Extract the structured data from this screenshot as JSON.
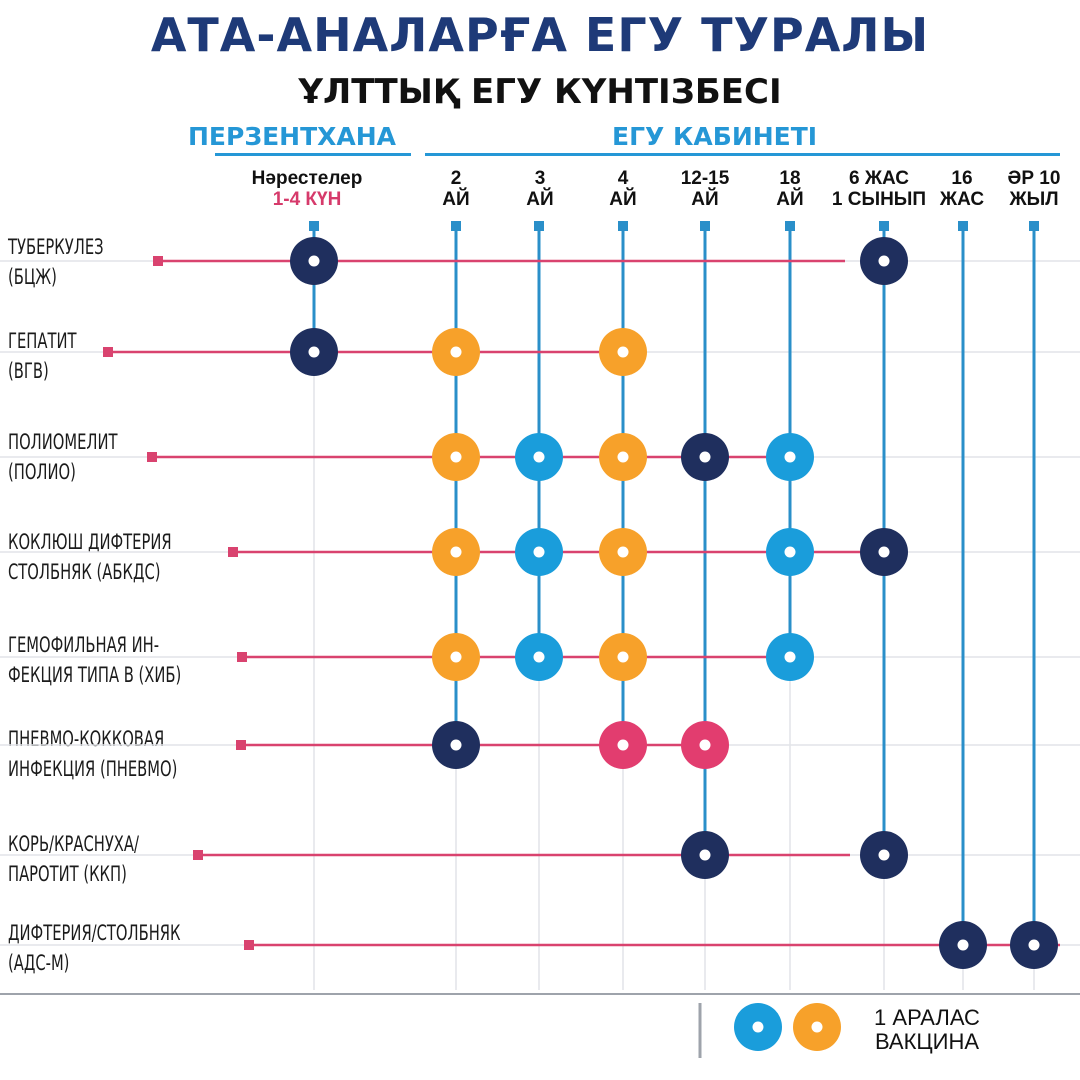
{
  "header": {
    "title": "АТА-АНАЛАРҒА ЕГУ ТУРАЛЫ",
    "subtitle": "ҰЛТТЫҚ ЕГУ КҮНТІЗБЕСІ"
  },
  "sections": {
    "left": "ПЕРЗЕНТХАНА",
    "right": "ЕГУ КАБИНЕТІ"
  },
  "columns": [
    {
      "id": "newborn",
      "line1": "Нәрестелер",
      "line2": "1-4 КҮН"
    },
    {
      "id": "m2",
      "line1": "2",
      "line2": "АЙ"
    },
    {
      "id": "m3",
      "line1": "3",
      "line2": "АЙ"
    },
    {
      "id": "m4",
      "line1": "4",
      "line2": "АЙ"
    },
    {
      "id": "m12",
      "line1": "12-15",
      "line2": "АЙ"
    },
    {
      "id": "m18",
      "line1": "18",
      "line2": "АЙ"
    },
    {
      "id": "y6",
      "line1": "6 ЖАС",
      "line2": "1 СЫНЫП"
    },
    {
      "id": "y16",
      "line1": "16",
      "line2": "ЖАС"
    },
    {
      "id": "y10",
      "line1": "ӘР 10",
      "line2": "ЖЫЛ"
    }
  ],
  "rows": [
    {
      "line1": "ТУБЕРКУЛЕЗ",
      "line2": "(БЦЖ)"
    },
    {
      "line1": "ГЕПАТИТ",
      "line2": "(ВГВ)"
    },
    {
      "line1": "ПОЛИОМЕЛИТ",
      "line2": "(ПОЛИО)"
    },
    {
      "line1": "КОКЛЮШ ДИФТЕРИЯ",
      "line2": "СТОЛБНЯК (АБКДС)"
    },
    {
      "line1": "ГЕМОФИЛЬНАЯ ИН-",
      "line2": "ФЕКЦИЯ ТИПА В (ХИБ)"
    },
    {
      "line1": "ПНЕВМО-КОККОВАЯ",
      "line2": "ИНФЕКЦИЯ (ПНЕВМО)"
    },
    {
      "line1": "КОРЬ/КРАСНУХА/",
      "line2": "ПАРОТИТ (ККП)"
    },
    {
      "line1": "ДИФТЕРИЯ/СТОЛБНЯК",
      "line2": "(АДС-М)"
    }
  ],
  "colors": {
    "navy": "#1f2f5e",
    "blue": "#1a9ddb",
    "orange": "#f7a12a",
    "pink": "#e23d6f",
    "row_line": "#d9436f",
    "col_line": "#2a8fc9",
    "title": "#1e3a78"
  },
  "schedule": [
    {
      "row": 0,
      "col": 0,
      "color": "navy"
    },
    {
      "row": 0,
      "col": 6,
      "color": "navy"
    },
    {
      "row": 1,
      "col": 0,
      "color": "navy"
    },
    {
      "row": 1,
      "col": 1,
      "color": "orange"
    },
    {
      "row": 1,
      "col": 3,
      "color": "orange"
    },
    {
      "row": 2,
      "col": 1,
      "color": "orange"
    },
    {
      "row": 2,
      "col": 2,
      "color": "blue"
    },
    {
      "row": 2,
      "col": 3,
      "color": "orange"
    },
    {
      "row": 2,
      "col": 4,
      "color": "navy"
    },
    {
      "row": 2,
      "col": 5,
      "color": "blue"
    },
    {
      "row": 3,
      "col": 1,
      "color": "orange"
    },
    {
      "row": 3,
      "col": 2,
      "color": "blue"
    },
    {
      "row": 3,
      "col": 3,
      "color": "orange"
    },
    {
      "row": 3,
      "col": 5,
      "color": "blue"
    },
    {
      "row": 3,
      "col": 6,
      "color": "navy"
    },
    {
      "row": 4,
      "col": 1,
      "color": "orange"
    },
    {
      "row": 4,
      "col": 2,
      "color": "blue"
    },
    {
      "row": 4,
      "col": 3,
      "color": "orange"
    },
    {
      "row": 4,
      "col": 5,
      "color": "blue"
    },
    {
      "row": 5,
      "col": 1,
      "color": "navy"
    },
    {
      "row": 5,
      "col": 3,
      "color": "pink"
    },
    {
      "row": 5,
      "col": 4,
      "color": "pink"
    },
    {
      "row": 6,
      "col": 4,
      "color": "navy"
    },
    {
      "row": 6,
      "col": 6,
      "color": "navy"
    },
    {
      "row": 7,
      "col": 7,
      "color": "navy"
    },
    {
      "row": 7,
      "col": 8,
      "color": "navy"
    }
  ],
  "legend": {
    "line1": "1 АРАЛАС",
    "line2": "ВАКЦИНА"
  }
}
